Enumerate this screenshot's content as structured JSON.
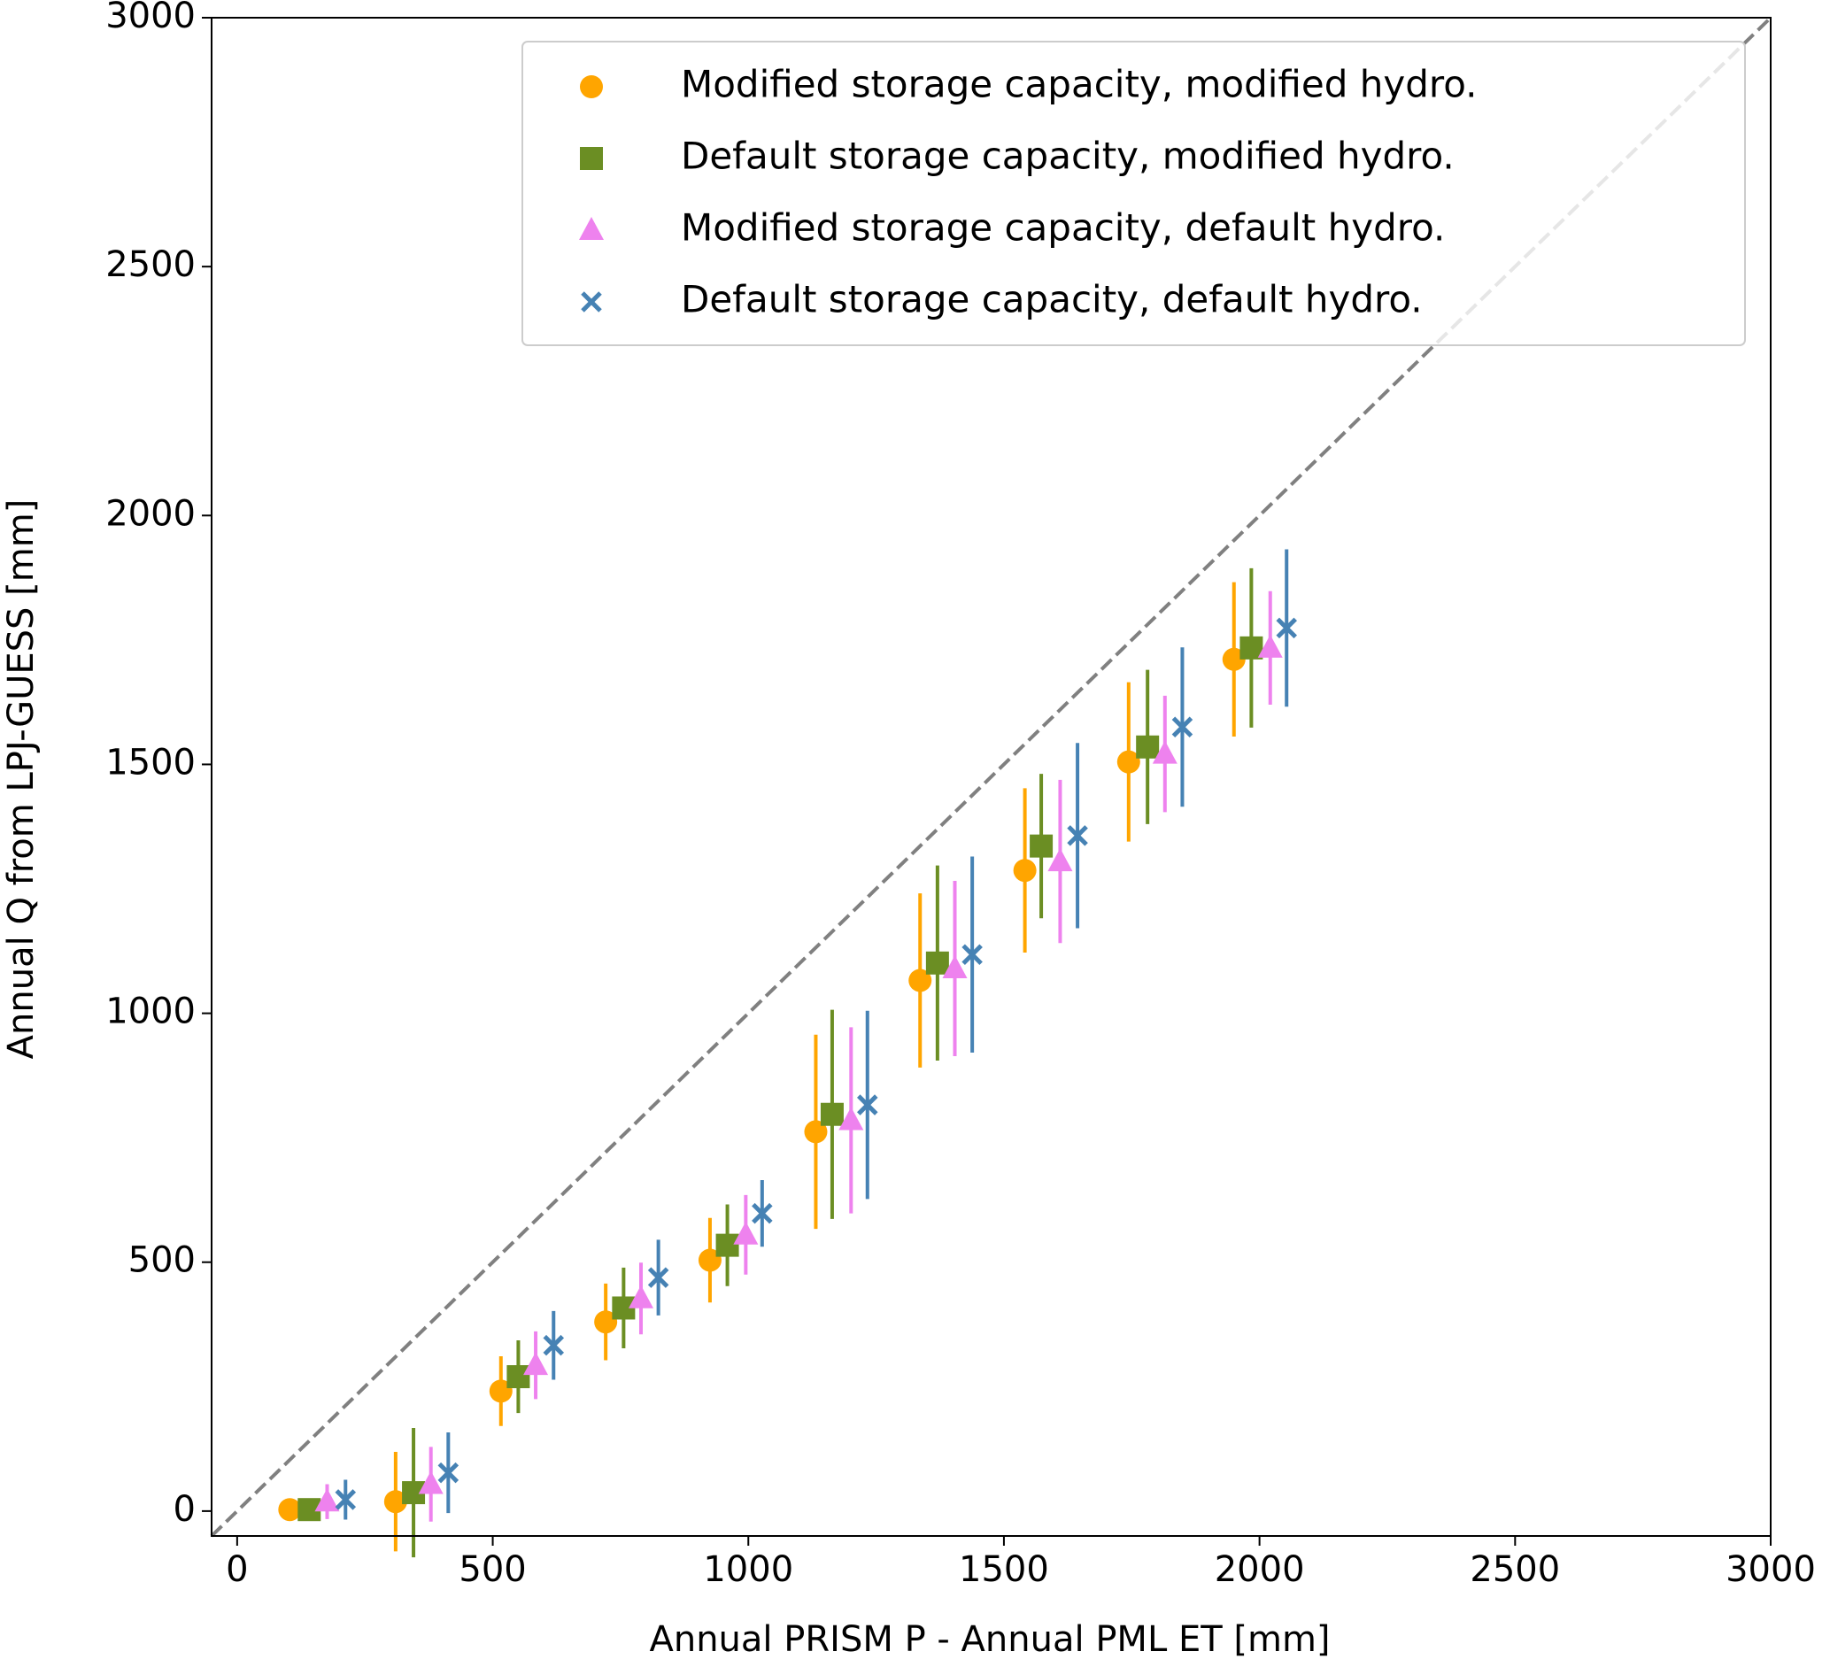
{
  "chart_data": {
    "type": "scatter",
    "x_label": "Annual PRISM P - Annual PML ET [mm]",
    "y_label": "Annual Q from LPJ-GUESS [mm]",
    "xlim": [
      -50,
      3000
    ],
    "ylim": [
      -50,
      3000
    ],
    "xticks": [
      0,
      500,
      1000,
      1500,
      2000,
      2500,
      3000
    ],
    "yticks": [
      0,
      500,
      1000,
      1500,
      2000,
      2500,
      3000
    ],
    "identity_line": true,
    "legend": "upper right",
    "series": [
      {
        "name": "Modified storage capacity, modified hydro.",
        "color": "#ffa500",
        "marker": "circle",
        "x": [
          103,
          310,
          516,
          721,
          925,
          1132,
          1336,
          1541,
          1744,
          1950
        ],
        "values": [
          3,
          19,
          241,
          380,
          504,
          762,
          1066,
          1287,
          1505,
          1711
        ],
        "errors": [
          5,
          100,
          70,
          77,
          85,
          195,
          175,
          165,
          160,
          155
        ]
      },
      {
        "name": "Default storage capacity, modified hydro.",
        "color": "#6b8e23",
        "marker": "square",
        "x": [
          141,
          345,
          550,
          756,
          959,
          1164,
          1370,
          1573,
          1781,
          1984
        ],
        "values": [
          3,
          37,
          270,
          408,
          534,
          797,
          1101,
          1336,
          1535,
          1734
        ],
        "errors": [
          15,
          130,
          73,
          81,
          82,
          210,
          196,
          145,
          155,
          160
        ]
      },
      {
        "name": "Modified storage capacity, default hydro.",
        "color": "#ee82ee",
        "marker": "triangle",
        "x": [
          176,
          379,
          584,
          790,
          995,
          1201,
          1404,
          1610,
          1815,
          2021
        ],
        "values": [
          19,
          54,
          293,
          427,
          555,
          785,
          1090,
          1305,
          1521,
          1734
        ],
        "errors": [
          35,
          75,
          68,
          72,
          80,
          187,
          176,
          164,
          117,
          114
        ]
      },
      {
        "name": "Default storage capacity, default hydro.",
        "color": "#4682b4",
        "marker": "x",
        "x": [
          212,
          413,
          619,
          824,
          1027,
          1233,
          1438,
          1644,
          1849,
          2053
        ],
        "values": [
          23,
          77,
          333,
          469,
          598,
          816,
          1118,
          1357,
          1575,
          1774
        ],
        "errors": [
          40,
          81,
          69,
          76,
          67,
          189,
          197,
          186,
          160,
          158
        ]
      }
    ]
  }
}
